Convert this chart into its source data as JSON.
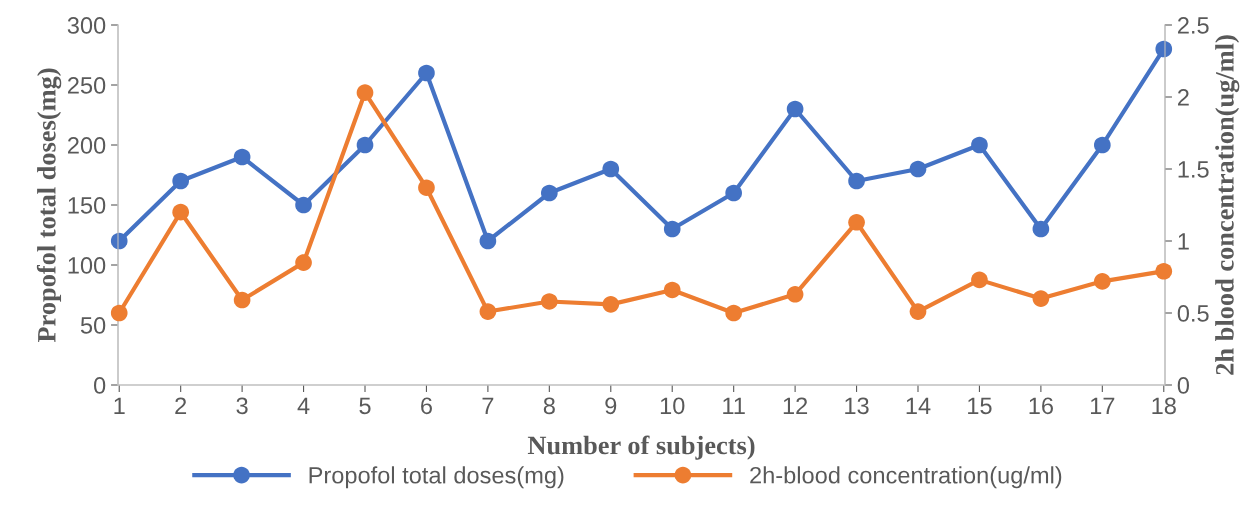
{
  "chart_data": {
    "type": "line",
    "xlabel": "Number of subjects)",
    "ylabel": "Propofol total doses(mg)",
    "y2label": "2h blood concentration(ug/ml)",
    "categories": [
      "1",
      "2",
      "3",
      "4",
      "5",
      "6",
      "7",
      "8",
      "9",
      "10",
      "11",
      "12",
      "13",
      "14",
      "15",
      "16",
      "17",
      "18"
    ],
    "series": [
      {
        "name": "Propofol total doses(mg)",
        "color": "#4472c4",
        "values": [
          120,
          170,
          190,
          150,
          200,
          260,
          120,
          160,
          180,
          130,
          160,
          230,
          170,
          180,
          200,
          130,
          200,
          280
        ]
      },
      {
        "name": "2h-blood concentration(ug/ml)",
        "color": "#ed7d31",
        "axis": "y2",
        "values": [
          0.5,
          1.2,
          0.59,
          0.85,
          2.03,
          1.37,
          0.51,
          0.58,
          0.56,
          0.66,
          0.5,
          0.63,
          1.13,
          0.51,
          0.73,
          0.6,
          0.72,
          0.79
        ]
      }
    ],
    "ylim": [
      0,
      300
    ],
    "yticks": [
      0,
      50,
      100,
      150,
      200,
      250,
      300
    ],
    "y2lim": [
      0,
      2.5
    ],
    "y2ticks": [
      0,
      0.5,
      1,
      1.5,
      2,
      2.5
    ],
    "marker": "circle",
    "line_style": "solid",
    "grid": false,
    "legend": "bottom"
  }
}
